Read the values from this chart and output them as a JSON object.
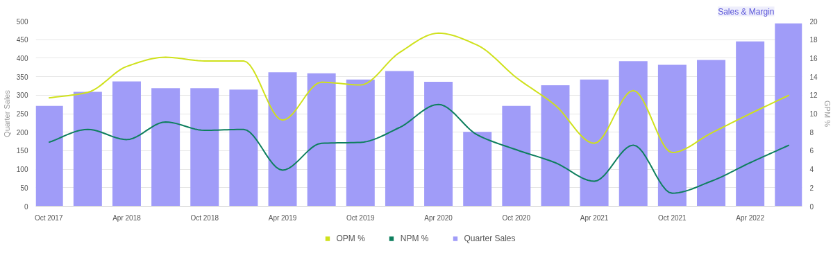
{
  "chart_data": {
    "type": "bar",
    "x": [
      "2017-10",
      "2018-01",
      "2018-04",
      "2018-07",
      "2018-10",
      "2019-01",
      "2019-04",
      "2019-07",
      "2019-10",
      "2020-01",
      "2020-04",
      "2020-07",
      "2020-10",
      "2021-01",
      "2021-04",
      "2021-07",
      "2021-10",
      "2022-01",
      "2022-04",
      "2022-07"
    ],
    "xlim": [
      "2017-09",
      "2022-08"
    ],
    "xticks": [
      {
        "value": "2017-10",
        "label": "Oct 2017"
      },
      {
        "value": "2018-04",
        "label": "Apr 2018"
      },
      {
        "value": "2018-10",
        "label": "Oct 2018"
      },
      {
        "value": "2019-04",
        "label": "Apr 2019"
      },
      {
        "value": "2019-10",
        "label": "Oct 2019"
      },
      {
        "value": "2020-04",
        "label": "Apr 2020"
      },
      {
        "value": "2020-10",
        "label": "Oct 2020"
      },
      {
        "value": "2021-04",
        "label": "Apr 2021"
      },
      {
        "value": "2021-10",
        "label": "Oct 2021"
      },
      {
        "value": "2022-04",
        "label": "Apr 2022"
      }
    ],
    "series": [
      {
        "name": "OPM %",
        "type": "line",
        "axis": "y2",
        "color": "#cfe11c",
        "values": [
          11.7,
          12.3,
          15.1,
          16.1,
          15.7,
          15.7,
          9.3,
          13.4,
          13.1,
          16.6,
          18.7,
          17.4,
          13.9,
          10.9,
          6.8,
          12.5,
          5.8,
          7.9,
          10.0,
          12.0
        ]
      },
      {
        "name": "NPM %",
        "type": "line",
        "axis": "y2",
        "color": "#0e7f5e",
        "values": [
          6.9,
          8.3,
          7.2,
          9.1,
          8.2,
          8.3,
          3.9,
          6.8,
          6.9,
          8.5,
          11.0,
          7.7,
          6.1,
          4.7,
          2.7,
          6.6,
          1.4,
          2.7,
          4.7,
          6.6
        ]
      },
      {
        "name": "Quarter Sales",
        "color": "#a09cf8",
        "values": [
          271,
          309,
          337,
          319,
          319,
          315,
          362,
          359,
          342,
          365,
          336,
          201,
          271,
          327,
          342,
          392,
          382,
          395,
          445,
          494
        ]
      }
    ],
    "ylabel": "Quarter Sales",
    "y2label": "GPM %",
    "ylim": [
      0,
      500
    ],
    "yticks": [
      0,
      50,
      100,
      150,
      200,
      250,
      300,
      350,
      400,
      450,
      500
    ],
    "y2lim": [
      0,
      20
    ],
    "y2ticks": [
      0,
      2,
      4,
      6,
      8,
      10,
      12,
      14,
      16,
      18,
      20
    ],
    "grid": "y",
    "legend": "bottom",
    "marker": "none",
    "annotations": [
      "Sales & Margin"
    ]
  }
}
